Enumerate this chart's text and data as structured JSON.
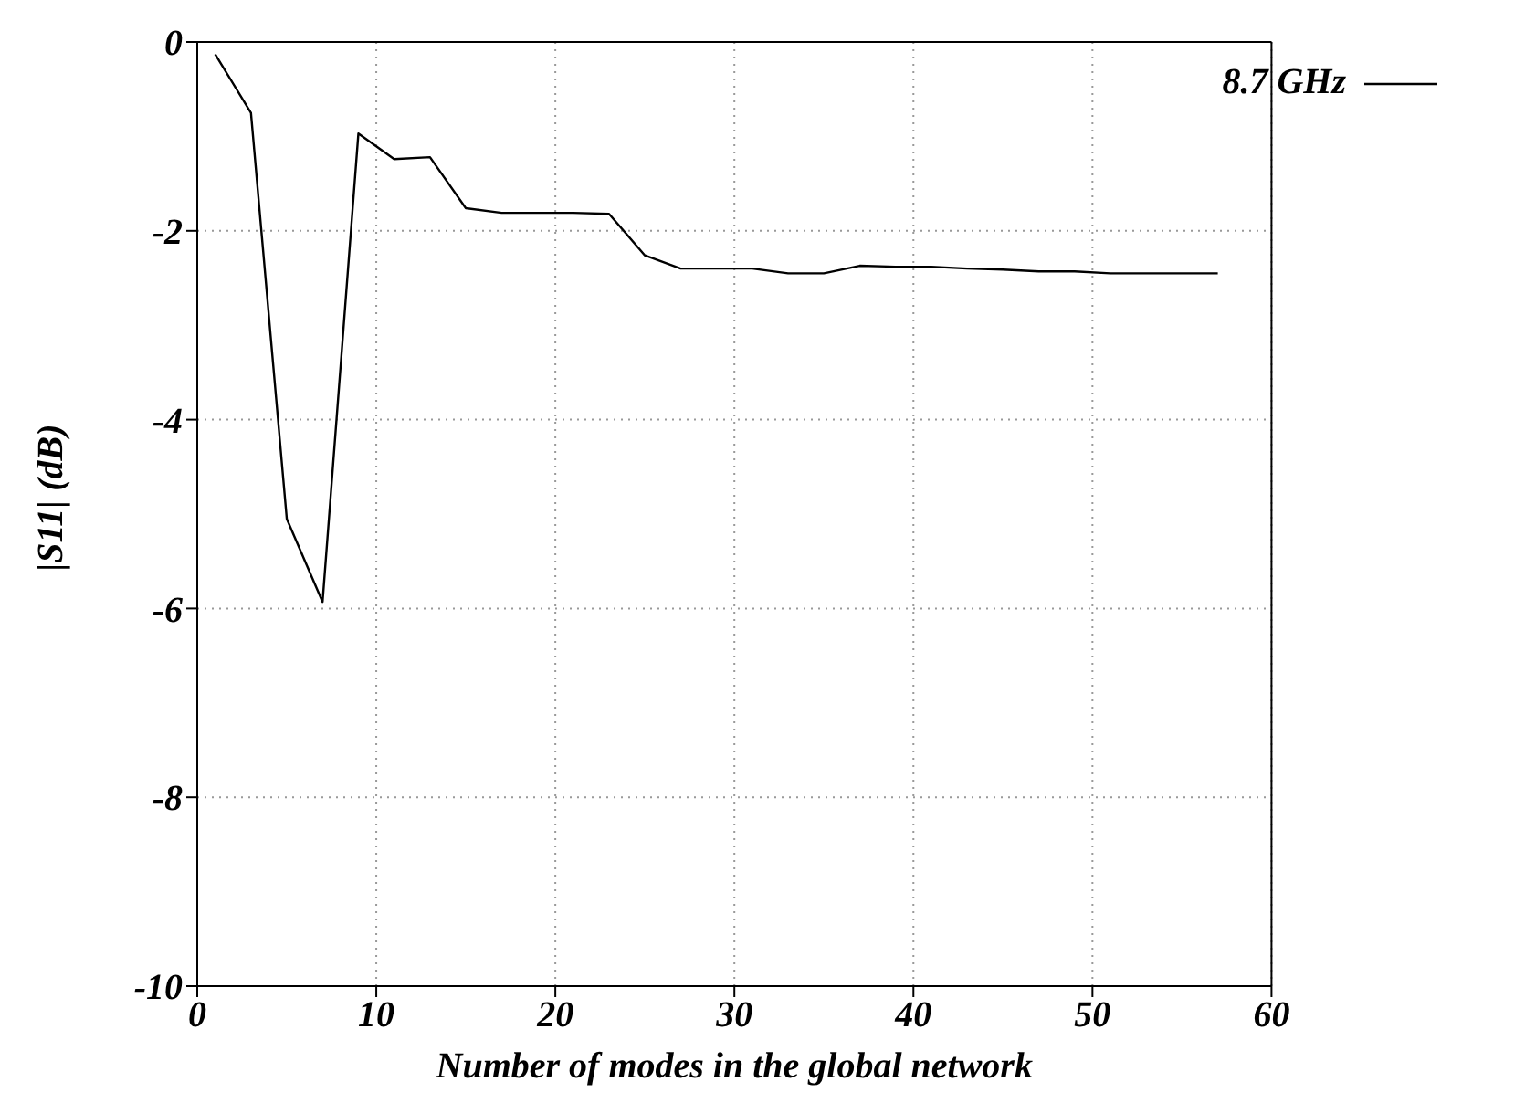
{
  "chart_data": {
    "type": "line",
    "xlabel": "Number of modes in the global network",
    "ylabel": "|S11| (dB)",
    "x": [
      1,
      3,
      5,
      7,
      9,
      11,
      13,
      15,
      17,
      19,
      21,
      23,
      25,
      27,
      29,
      31,
      33,
      35,
      37,
      39,
      41,
      43,
      45,
      47,
      49,
      51,
      53,
      55,
      57
    ],
    "series": [
      {
        "name": "8.7 GHz",
        "color": "#000000",
        "values": [
          -0.13,
          -0.75,
          -5.05,
          -5.93,
          -0.97,
          -1.24,
          -1.22,
          -1.76,
          -1.81,
          -1.81,
          -1.81,
          -1.82,
          -2.26,
          -2.4,
          -2.4,
          -2.4,
          -2.45,
          -2.45,
          -2.37,
          -2.38,
          -2.38,
          -2.4,
          -2.41,
          -2.43,
          -2.43,
          -2.45,
          -2.45,
          -2.45,
          -2.45
        ]
      }
    ],
    "xlim": [
      0,
      60
    ],
    "xticks": [
      0,
      10,
      20,
      30,
      40,
      50,
      60
    ],
    "ylim": [
      -10,
      0
    ],
    "yticks": [
      -10,
      -8,
      -6,
      -4,
      -2,
      0
    ],
    "grid": true,
    "legend": "top right",
    "marker": "none",
    "line_style": "solid"
  }
}
